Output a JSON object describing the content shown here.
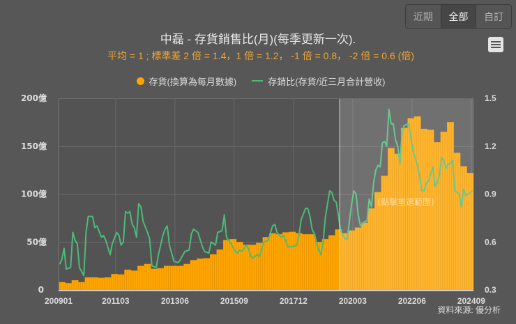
{
  "range_buttons": [
    {
      "label": "近期",
      "active": false
    },
    {
      "label": "全部",
      "active": true
    },
    {
      "label": "自訂",
      "active": false
    }
  ],
  "chart": {
    "title": "中磊 - 存貨銷售比(月)(每季更新一次).",
    "subtitle": "平均 = 1 ; 標準差 2 倍 = 1.4，1 倍 = 1.2， -1 倍 = 0.8， -2 倍 = 0.6 (倍)",
    "reset_zoom_hint": "(點擊重選範圍)"
  },
  "menu": {
    "icon": "hamburger-menu-icon"
  },
  "legend": [
    {
      "label": "存貨(換算為每月數據)",
      "icon": "circle-marker",
      "color": "#ffa500"
    },
    {
      "label": "存銷比(存貨/近三月合計營收)",
      "icon": "line-marker",
      "color": "#4cbb7a"
    }
  ],
  "credits": "資料來源: 優分析",
  "colors": {
    "bar": "#ffa500",
    "bar_border": "#d98c00",
    "line": "#4cbb7a",
    "subtitle": "#f0a532",
    "highlight": "rgba(255,255,255,0.17)"
  },
  "chart_data": {
    "type": "bar+line",
    "title": "中磊 - 存貨銷售比(月)(每季更新一次).",
    "subtitle": "平均 = 1 ; 標準差 2 倍 = 1.4，1 倍 = 1.2， -1 倍 = 0.8， -2 倍 = 0.6 (倍)",
    "x_start": "200901",
    "x_end": "202409",
    "months": 189,
    "x_ticks": [
      {
        "label": "200901",
        "month_index": 0
      },
      {
        "label": "201103",
        "month_index": 26
      },
      {
        "label": "201306",
        "month_index": 53
      },
      {
        "label": "201509",
        "month_index": 80
      },
      {
        "label": "201712",
        "month_index": 107
      },
      {
        "label": "202003",
        "month_index": 134
      },
      {
        "label": "202206",
        "month_index": 161
      },
      {
        "label": "202409",
        "month_index": 188
      }
    ],
    "y_left": {
      "label": "存貨",
      "unit": "億",
      "ylim": [
        0,
        200
      ],
      "ticks": [
        "0",
        "50億",
        "100億",
        "150億",
        "200億"
      ],
      "tick_values": [
        0,
        50,
        100,
        150,
        200
      ]
    },
    "y_right": {
      "label": "存銷比",
      "ylim": [
        0.3,
        1.5
      ],
      "ticks": [
        "0.3",
        "0.6",
        "0.9",
        "1.2",
        "1.5"
      ],
      "tick_values": [
        0.3,
        0.6,
        0.9,
        1.2,
        1.5
      ]
    },
    "grid": true,
    "legend_position": "top",
    "highlight_range": {
      "from_month_index": 128,
      "to_month_index": 188
    },
    "series": [
      {
        "name": "存貨(換算為每月數據)",
        "type": "bar",
        "axis": "left",
        "period": "quarter (held 3 months each)",
        "values": [
          8,
          7,
          10,
          8,
          13,
          13,
          12.5,
          13,
          16.5,
          16,
          21,
          20,
          25,
          27,
          22,
          22.5,
          25,
          25,
          25,
          27,
          31,
          32.5,
          33,
          37,
          42,
          52,
          53,
          50,
          47,
          47,
          49,
          55,
          59,
          58,
          60,
          60.5,
          59,
          58,
          58,
          50,
          53,
          57,
          63,
          59,
          62,
          65,
          70,
          85,
          102,
          119,
          148,
          142,
          169,
          179,
          181,
          168,
          167,
          154,
          165,
          175,
          143,
          129,
          122
        ]
      },
      {
        "name": "存銷比(存貨/近三月合計營收)",
        "type": "line",
        "axis": "right",
        "points_format": "[month_index, ratio]",
        "points": [
          [
            0,
            0.46
          ],
          [
            1,
            0.49
          ],
          [
            2,
            0.56
          ],
          [
            3,
            0.43
          ],
          [
            5,
            0.44
          ],
          [
            6,
            0.66
          ],
          [
            7,
            0.61
          ],
          [
            8,
            0.59
          ],
          [
            9,
            0.44
          ],
          [
            11,
            0.39
          ],
          [
            12,
            0.66
          ],
          [
            13,
            0.76
          ],
          [
            15,
            0.76
          ],
          [
            16,
            0.69
          ],
          [
            17,
            0.7
          ],
          [
            19,
            0.63
          ],
          [
            20,
            0.64
          ],
          [
            21,
            0.61
          ],
          [
            23,
            0.52
          ],
          [
            24,
            0.59
          ],
          [
            26,
            0.66
          ],
          [
            27,
            0.64
          ],
          [
            28,
            0.58
          ],
          [
            29,
            0.6
          ],
          [
            30,
            0.79
          ],
          [
            31,
            0.78
          ],
          [
            32,
            0.79
          ],
          [
            33,
            0.71
          ],
          [
            34,
            0.69
          ],
          [
            35,
            0.63
          ],
          [
            36,
            0.84
          ],
          [
            37,
            0.82
          ],
          [
            38,
            0.73
          ],
          [
            40,
            0.66
          ],
          [
            41,
            0.62
          ],
          [
            42,
            0.45
          ],
          [
            44,
            0.44
          ],
          [
            45,
            0.52
          ],
          [
            47,
            0.64
          ],
          [
            48,
            0.68
          ],
          [
            49,
            0.7
          ],
          [
            50,
            0.58
          ],
          [
            52,
            0.48
          ],
          [
            54,
            0.47
          ],
          [
            55,
            0.49
          ],
          [
            57,
            0.54
          ],
          [
            59,
            0.55
          ],
          [
            60,
            0.65
          ],
          [
            61,
            0.68
          ],
          [
            63,
            0.66
          ],
          [
            65,
            0.57
          ],
          [
            66,
            0.54
          ],
          [
            68,
            0.53
          ],
          [
            69,
            0.6
          ],
          [
            71,
            0.58
          ],
          [
            72,
            0.66
          ],
          [
            74,
            0.67
          ],
          [
            75,
            0.77
          ],
          [
            76,
            0.63
          ],
          [
            78,
            0.59
          ],
          [
            80,
            0.54
          ],
          [
            81,
            0.53
          ],
          [
            82,
            0.55
          ],
          [
            83,
            0.54
          ],
          [
            85,
            0.58
          ],
          [
            86,
            0.56
          ],
          [
            87,
            0.51
          ],
          [
            88,
            0.5
          ],
          [
            90,
            0.52
          ],
          [
            91,
            0.51
          ],
          [
            93,
            0.6
          ],
          [
            95,
            0.61
          ],
          [
            97,
            0.7
          ],
          [
            98,
            0.71
          ],
          [
            99,
            0.66
          ],
          [
            101,
            0.63
          ],
          [
            102,
            0.64
          ],
          [
            104,
            0.57
          ],
          [
            106,
            0.57
          ],
          [
            108,
            0.58
          ],
          [
            109,
            0.64
          ],
          [
            110,
            0.74
          ],
          [
            112,
            0.81
          ],
          [
            113,
            0.81
          ],
          [
            114,
            0.76
          ],
          [
            115,
            0.68
          ],
          [
            116,
            0.65
          ],
          [
            118,
            0.55
          ],
          [
            119,
            0.52
          ],
          [
            120,
            0.6
          ],
          [
            121,
            0.75
          ],
          [
            123,
            0.92
          ],
          [
            124,
            0.91
          ],
          [
            125,
            0.86
          ],
          [
            126,
            0.85
          ],
          [
            127,
            0.76
          ],
          [
            128,
            0.67
          ],
          [
            130,
            0.62
          ],
          [
            131,
            0.62
          ],
          [
            132,
            0.73
          ],
          [
            133,
            0.84
          ],
          [
            134,
            0.92
          ],
          [
            135,
            0.9
          ],
          [
            136,
            0.77
          ],
          [
            137,
            0.7
          ],
          [
            139,
            0.73
          ],
          [
            140,
            0.73
          ],
          [
            141,
            0.87
          ],
          [
            142,
            0.82
          ],
          [
            143,
            0.97
          ],
          [
            144,
            1.05
          ],
          [
            145,
            1.08
          ],
          [
            146,
            1.07
          ],
          [
            147,
            1.22
          ],
          [
            148,
            1.23
          ],
          [
            149,
            1.2
          ],
          [
            150,
            1.43
          ],
          [
            151,
            1.34
          ],
          [
            152,
            1.34
          ],
          [
            153,
            1.24
          ],
          [
            154,
            1.2
          ],
          [
            155,
            1.09
          ],
          [
            156,
            1.29
          ],
          [
            157,
            1.33
          ],
          [
            159,
            1.34
          ],
          [
            160,
            1.25
          ],
          [
            161,
            1.17
          ],
          [
            163,
            1.08
          ],
          [
            164,
            1.01
          ],
          [
            165,
            0.92
          ],
          [
            166,
            0.92
          ],
          [
            167,
            0.97
          ],
          [
            168,
            0.98
          ],
          [
            170,
            1.07
          ],
          [
            171,
            0.95
          ],
          [
            172,
            0.97
          ],
          [
            173,
            1.02
          ],
          [
            174,
            1.13
          ],
          [
            175,
            1.11
          ],
          [
            176,
            1.06
          ],
          [
            177,
            1.09
          ],
          [
            178,
            1.09
          ],
          [
            179,
            1.11
          ],
          [
            180,
            0.92
          ],
          [
            182,
            0.9
          ],
          [
            183,
            0.82
          ],
          [
            184,
            0.93
          ],
          [
            185,
            0.89
          ],
          [
            187,
            0.91
          ],
          [
            188,
            0.92
          ]
        ]
      }
    ]
  }
}
